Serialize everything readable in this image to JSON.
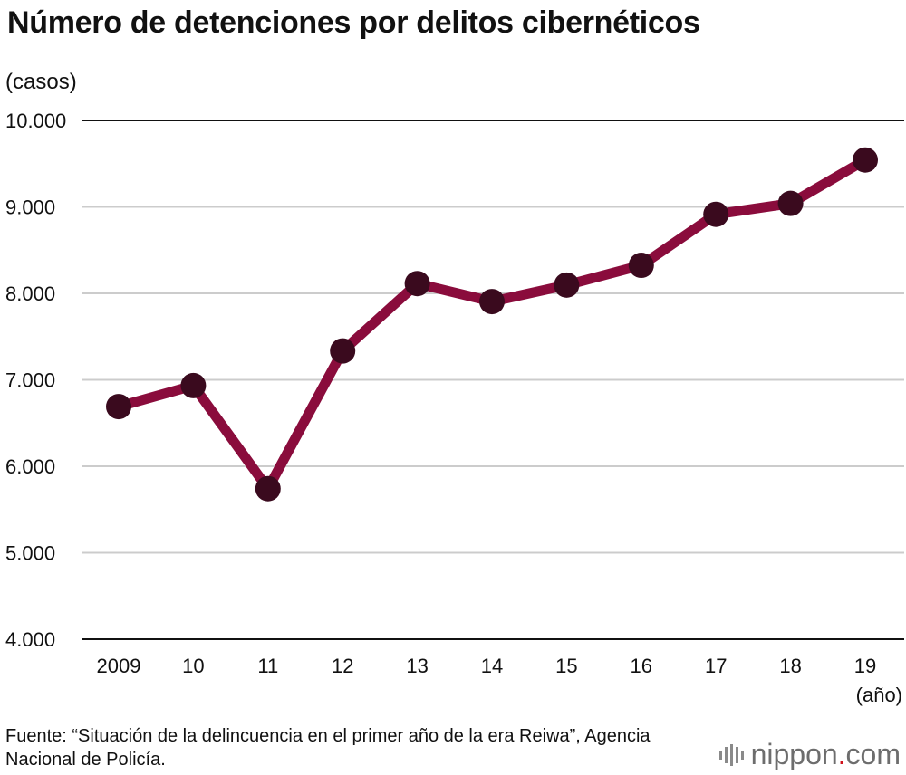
{
  "chart_data": {
    "type": "line",
    "title": "Número de detenciones por delitos cibernéticos",
    "ylabel": "(casos)",
    "xlabel": "(año)",
    "categories": [
      "2009",
      "10",
      "11",
      "12",
      "13",
      "14",
      "15",
      "16",
      "17",
      "18",
      "19"
    ],
    "series": [
      {
        "values": [
          6690,
          6933,
          5741,
          7334,
          8113,
          7905,
          8096,
          8324,
          8914,
          9040,
          9542
        ]
      }
    ],
    "ylim": [
      4000,
      10000
    ],
    "yticks": [
      4000,
      5000,
      6000,
      7000,
      8000,
      9000,
      10000
    ],
    "ytick_labels": [
      "4.000",
      "5.000",
      "6.000",
      "7.000",
      "8.000",
      "9.000",
      "10.000"
    ],
    "grid": true,
    "colors": {
      "line": "#8a0c3c",
      "marker": "#3a0a1e",
      "grid": "#cccccc",
      "axis": "#111111"
    }
  },
  "source_text": "Fuente: “Situación de la delincuencia en el primer año de la era Reiwa”, Agencia Nacional de Policía.",
  "logo": {
    "name": "nippon",
    "dot": ".",
    "suffix": "com"
  }
}
